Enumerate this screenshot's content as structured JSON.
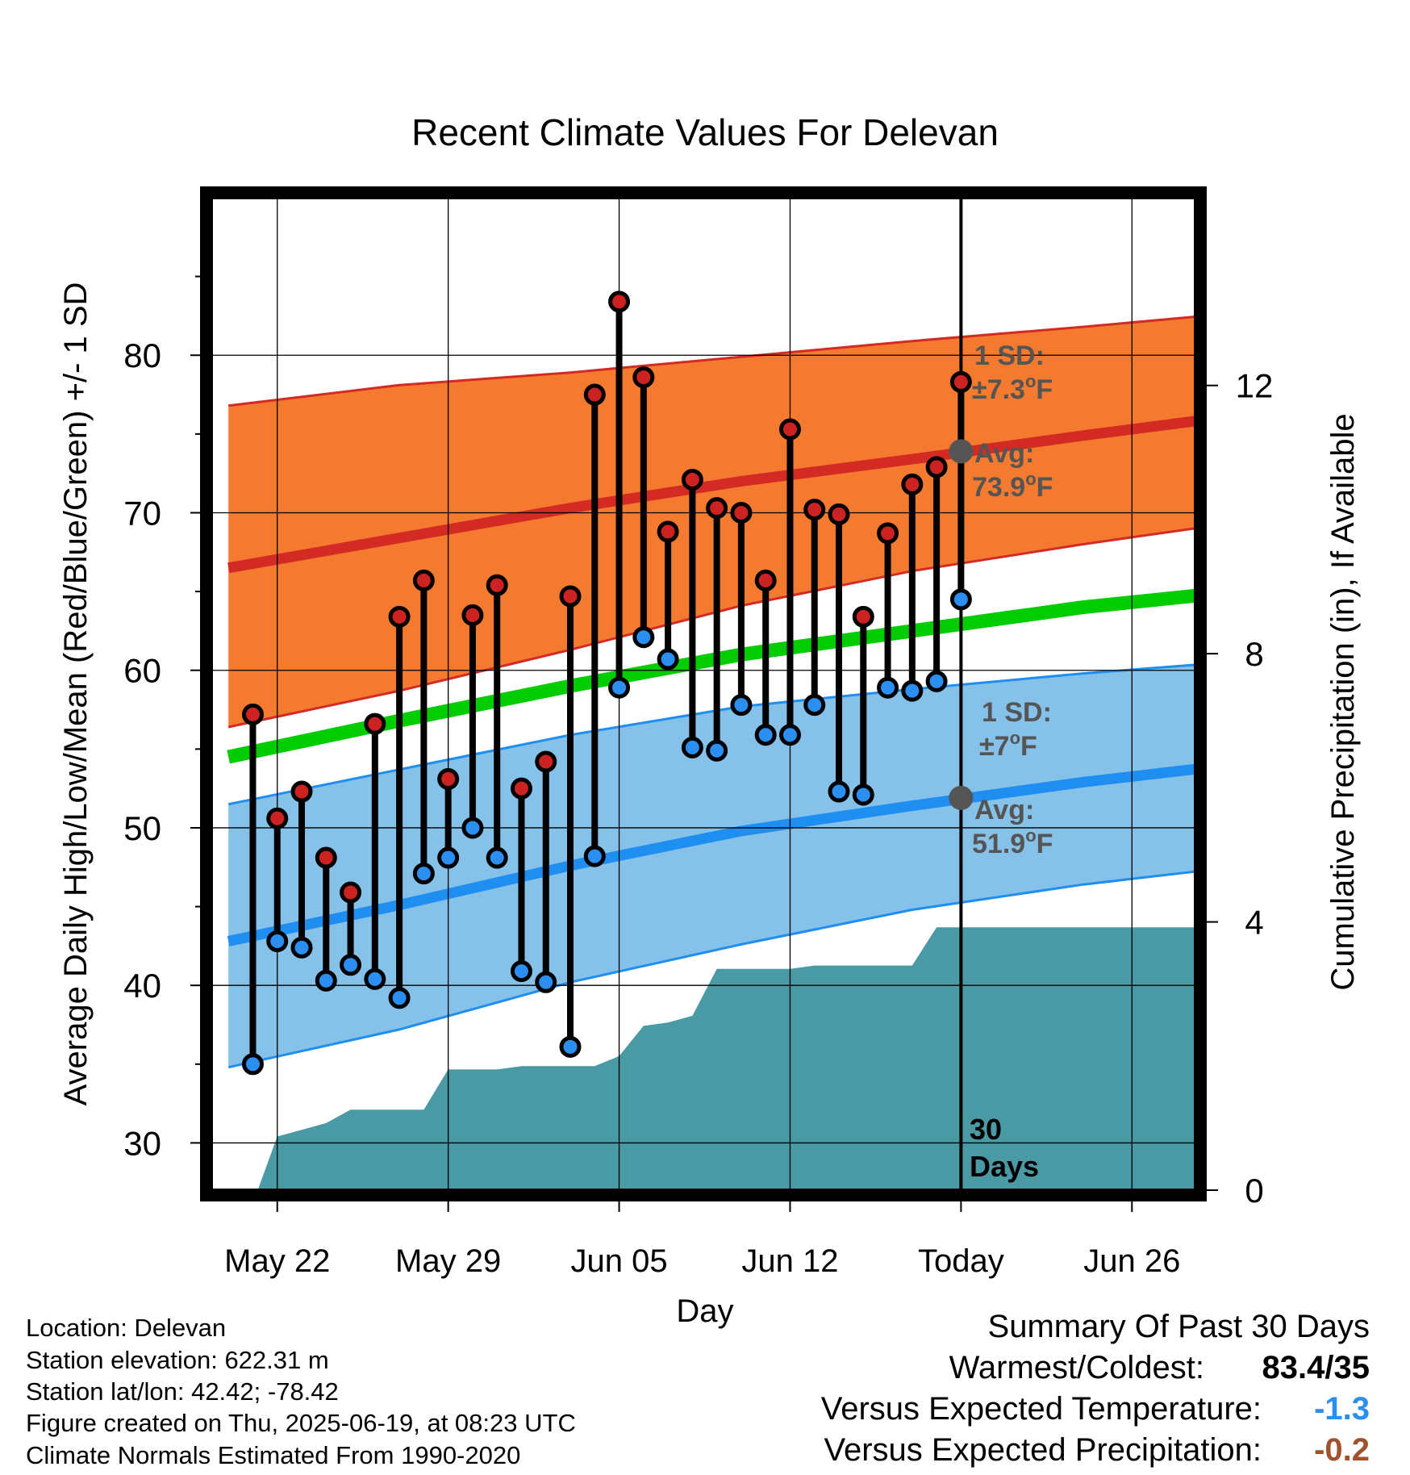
{
  "chart_data": {
    "type": "line",
    "title": "Recent Climate Values For Delevan",
    "xlabel": "Day",
    "ylabel": "Average Daily High/Low/Mean (Red/Blue/Green) +/- 1 SD",
    "y2label": "Cumulative Precipitation (in), If Available",
    "x_tick_labels": [
      "May 22",
      "May 29",
      "Jun 05",
      "Jun 12",
      "Today",
      "Jun 26"
    ],
    "x_tick_days": [
      2,
      9,
      16,
      23,
      30,
      37
    ],
    "ylim": [
      27,
      90
    ],
    "y_ticks": [
      30,
      40,
      50,
      60,
      70,
      80
    ],
    "y2lim": [
      0,
      14.8
    ],
    "y2_ticks": [
      0,
      4,
      8,
      12
    ],
    "xlim": [
      -0.7,
      39.6
    ],
    "today_day": 30,
    "grid": true,
    "colors": {
      "high_band": "#f47a2f",
      "high_mean": "#d42a24",
      "low_band": "#85c1e8",
      "low_mean": "#1e8ef0",
      "mean": "#00cc00",
      "precip": "#4a9aa5",
      "annotation": "#555555",
      "high_point": "#cc2222",
      "low_point": "#2a8ff0"
    },
    "series": [
      {
        "name": "High",
        "x": [
          1,
          2,
          3,
          4,
          5,
          6,
          7,
          8,
          9,
          10,
          11,
          12,
          13,
          14,
          15,
          16,
          17,
          18,
          19,
          20,
          21,
          22,
          23,
          24,
          25,
          26,
          27,
          28,
          29,
          30
        ],
        "values": [
          57.2,
          50.6,
          52.3,
          48.1,
          45.9,
          56.6,
          63.4,
          65.7,
          53.1,
          63.5,
          65.4,
          52.5,
          54.2,
          64.7,
          77.5,
          83.4,
          78.6,
          68.8,
          72.1,
          70.3,
          70.0,
          65.7,
          75.3,
          70.2,
          69.9,
          63.4,
          68.7,
          71.8,
          72.9,
          78.3
        ]
      },
      {
        "name": "Low",
        "x": [
          1,
          2,
          3,
          4,
          5,
          6,
          7,
          8,
          9,
          10,
          11,
          12,
          13,
          14,
          15,
          16,
          17,
          18,
          19,
          20,
          21,
          22,
          23,
          24,
          25,
          26,
          27,
          28,
          29,
          30
        ],
        "values": [
          35.0,
          42.8,
          42.4,
          40.3,
          41.3,
          40.4,
          39.2,
          47.1,
          48.1,
          50.0,
          48.1,
          40.9,
          40.2,
          36.1,
          48.2,
          58.9,
          62.1,
          60.7,
          55.1,
          54.9,
          57.8,
          55.9,
          55.9,
          57.8,
          52.3,
          52.1,
          58.9,
          58.7,
          59.3,
          64.5
        ]
      },
      {
        "name": "Normal High",
        "x": [
          0,
          7,
          14,
          21,
          28,
          35,
          40
        ],
        "values": [
          66.5,
          68.4,
          70.3,
          72.0,
          73.4,
          74.9,
          75.9
        ]
      },
      {
        "name": "Normal High +1 SD",
        "x": [
          0,
          7,
          14,
          21,
          28,
          35,
          40
        ],
        "values": [
          76.8,
          78.1,
          78.9,
          79.9,
          80.9,
          81.8,
          82.5
        ]
      },
      {
        "name": "Normal High -1 SD",
        "x": [
          0,
          7,
          14,
          21,
          28,
          35,
          40
        ],
        "values": [
          56.4,
          58.7,
          61.3,
          64.1,
          66.3,
          68.0,
          69.1
        ]
      },
      {
        "name": "Normal Low",
        "x": [
          0,
          7,
          14,
          21,
          28,
          35,
          40
        ],
        "values": [
          42.8,
          45.1,
          47.6,
          49.8,
          51.4,
          52.9,
          53.8
        ]
      },
      {
        "name": "Normal Low +1 SD",
        "x": [
          0,
          7,
          14,
          21,
          28,
          35,
          40
        ],
        "values": [
          51.5,
          53.7,
          55.9,
          57.7,
          58.8,
          59.8,
          60.4
        ]
      },
      {
        "name": "Normal Low -1 SD",
        "x": [
          0,
          7,
          14,
          21,
          28,
          35,
          40
        ],
        "values": [
          34.8,
          37.2,
          40.2,
          42.6,
          44.8,
          46.4,
          47.3
        ]
      },
      {
        "name": "Normal Mean",
        "x": [
          0,
          7,
          14,
          21,
          28,
          35,
          40
        ],
        "values": [
          54.5,
          56.8,
          59.0,
          61.0,
          62.5,
          64.0,
          64.8
        ]
      },
      {
        "name": "Cumulative Precipitation",
        "x": [
          0.3,
          1.2,
          2,
          3,
          4,
          5,
          6,
          7,
          8,
          9,
          10,
          11,
          12,
          13,
          14,
          15,
          16,
          17,
          18,
          19,
          20,
          21,
          22,
          23,
          24,
          25,
          26,
          27,
          28,
          29,
          30,
          35,
          40
        ],
        "values": [
          0,
          0,
          0.8,
          0.9,
          1.0,
          1.2,
          1.2,
          1.2,
          1.2,
          1.8,
          1.8,
          1.8,
          1.85,
          1.85,
          1.85,
          1.85,
          2.0,
          2.45,
          2.5,
          2.6,
          3.3,
          3.3,
          3.3,
          3.3,
          3.35,
          3.35,
          3.35,
          3.35,
          3.35,
          3.92,
          3.92,
          3.92,
          3.92
        ]
      }
    ],
    "normal_high_today": 73.9,
    "normal_low_today": 51.9,
    "annotations": {
      "high_sd_label": "1 SD:",
      "high_sd_value": "±7.3",
      "high_avg_label": "Avg:",
      "high_avg_value": "73.9",
      "low_sd_label": "1 SD:",
      "low_sd_value": "±7",
      "low_avg_label": "Avg:",
      "low_avg_value": "51.9",
      "degree_unit": "o",
      "unit_letter": "F",
      "days_count": "30",
      "days_word": "Days"
    }
  },
  "location_info": {
    "location": "Location: Delevan",
    "elevation": "Station elevation: 622.31 m",
    "latlon": "Station lat/lon: 42.42; -78.42",
    "created": "Figure created on Thu, 2025-06-19, at 08:23 UTC",
    "normals": "Climate Normals Estimated From 1990-2020"
  },
  "summary": {
    "title": "Summary Of Past 30 Days",
    "warmest_coldest_label": "Warmest/Coldest:",
    "warmest_coldest_value": "83.4/35",
    "temp_label": "Versus Expected Temperature:",
    "temp_value": "-1.3",
    "temp_color": "#2a8ff0",
    "precip_label": "Versus Expected Precipitation:",
    "precip_value": "-0.2",
    "precip_color": "#a0522d"
  }
}
